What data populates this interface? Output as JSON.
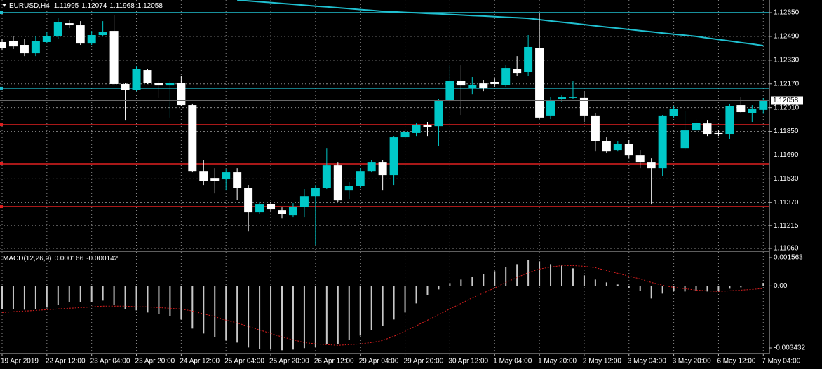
{
  "chart_data": [
    {
      "type": "candlestick",
      "title": "EURUSD,H4",
      "categories": [
        "19 Apr 2019",
        null,
        null,
        null,
        "22 Apr 12:00",
        null,
        null,
        null,
        "23 Apr 04:00",
        null,
        null,
        null,
        "23 Apr 20:00",
        null,
        null,
        null,
        "24 Apr 12:00",
        null,
        null,
        null,
        "25 Apr 04:00",
        null,
        null,
        null,
        "25 Apr 20:00",
        null,
        null,
        null,
        "26 Apr 12:00",
        null,
        null,
        null,
        "29 Apr 04:00",
        null,
        null,
        null,
        "29 Apr 20:00",
        null,
        null,
        null,
        "30 Apr 12:00",
        null,
        null,
        null,
        "1 May 04:00",
        null,
        null,
        null,
        "1 May 20:00",
        null,
        null,
        null,
        "2 May 12:00",
        null,
        null,
        null,
        "3 May 04:00",
        null,
        null,
        null,
        "3 May 20:00",
        null,
        null,
        null,
        "6 May 12:00",
        null,
        null,
        null,
        "7 May 04:00"
      ],
      "open": [
        1.12452,
        1.12461,
        1.12433,
        1.12376,
        1.12452,
        1.1249,
        1.12579,
        1.12565,
        1.12442,
        1.12499,
        1.12527,
        1.12169,
        1.12131,
        1.12263,
        1.12178,
        1.12159,
        1.12178,
        1.12027,
        1.11583,
        1.11536,
        1.11527,
        1.11574,
        1.1147,
        1.11305,
        1.11362,
        1.11319,
        1.11286,
        1.11343,
        1.11413,
        1.1147,
        1.11621,
        1.11451,
        1.11484,
        1.11583,
        1.1164,
        1.11555,
        1.1181,
        1.11839,
        1.11895,
        1.11885,
        1.12056,
        1.12192,
        1.12145,
        1.12173,
        1.12183,
        1.12164,
        1.12272,
        1.12249,
        1.12414,
        1.11957,
        1.12065,
        1.12075,
        1.12075,
        1.11957,
        1.11782,
        1.11725,
        1.11767,
        1.11687,
        1.1164,
        1.11602,
        1.11952,
        1.11734,
        1.11857,
        1.11904,
        1.11839,
        1.11829,
        1.12027,
        1.11971,
        1.11995
      ],
      "high": [
        1.12475,
        1.1249,
        1.12471,
        1.1249,
        1.12518,
        1.12617,
        1.12603,
        1.12593,
        1.12527,
        1.12593,
        1.12631,
        1.12178,
        1.12291,
        1.12272,
        1.12188,
        1.12188,
        1.12225,
        1.12037,
        1.11659,
        1.11602,
        1.11593,
        1.11602,
        1.11489,
        1.11376,
        1.11376,
        1.11338,
        1.11366,
        1.11461,
        1.11489,
        1.11734,
        1.1164,
        1.11508,
        1.11602,
        1.11659,
        1.11659,
        1.11819,
        1.11867,
        1.11904,
        1.11914,
        1.12065,
        1.12296,
        1.12296,
        1.12216,
        1.12197,
        1.12206,
        1.12296,
        1.12357,
        1.12499,
        1.1265,
        1.12084,
        1.12093,
        1.12188,
        1.12121,
        1.11971,
        1.1181,
        1.11782,
        1.11791,
        1.11725,
        1.11668,
        1.11961,
        1.12018,
        1.1199,
        1.11933,
        1.11923,
        1.11857,
        1.12037,
        1.12084,
        1.12027,
        1.12074
      ],
      "low": [
        1.12395,
        1.12405,
        1.12357,
        1.12357,
        1.12442,
        1.12471,
        1.12546,
        1.12433,
        1.12433,
        1.1249,
        1.12159,
        1.11923,
        1.12121,
        1.12169,
        1.12075,
        1.11943,
        1.12018,
        1.11574,
        1.11489,
        1.11432,
        1.11451,
        1.1139,
        1.11177,
        1.11295,
        1.11305,
        1.11262,
        1.11272,
        1.11272,
        1.11083,
        1.11461,
        1.11376,
        1.11395,
        1.1147,
        1.11574,
        1.11451,
        1.11489,
        1.11801,
        1.11819,
        1.11819,
        1.11753,
        1.12046,
        1.11961,
        1.12102,
        1.12121,
        1.1215,
        1.1215,
        1.12225,
        1.12225,
        1.11933,
        1.11933,
        1.12046,
        1.12065,
        1.11914,
        1.11715,
        1.11706,
        1.11715,
        1.11668,
        1.11602,
        1.11357,
        1.11546,
        1.11943,
        1.11725,
        1.11848,
        1.11819,
        1.11819,
        1.11801,
        1.11971,
        1.11914,
        1.11968
      ],
      "close": [
        1.12414,
        1.12423,
        1.12376,
        1.12461,
        1.1249,
        1.12584,
        1.12565,
        1.12442,
        1.12499,
        1.12518,
        1.12169,
        1.12131,
        1.12272,
        1.12178,
        1.12159,
        1.12178,
        1.12027,
        1.11583,
        1.11517,
        1.11517,
        1.11574,
        1.1147,
        1.11305,
        1.11357,
        1.11324,
        1.11295,
        1.11343,
        1.11413,
        1.1147,
        1.11621,
        1.11385,
        1.11484,
        1.11583,
        1.1164,
        1.11555,
        1.1181,
        1.11848,
        1.11895,
        1.11881,
        1.12056,
        1.12192,
        1.12159,
        1.12164,
        1.1214,
        1.12169,
        1.12277,
        1.12244,
        1.12419,
        1.11943,
        1.1206,
        1.12079,
        1.12084,
        1.11957,
        1.11782,
        1.11715,
        1.11767,
        1.11687,
        1.1164,
        1.11602,
        1.11957,
        1.11999,
        1.11857,
        1.11909,
        1.11829,
        1.11829,
        1.12022,
        1.1198,
        1.12004,
        1.12058
      ],
      "up_color": "#00c8c8",
      "down_color": "#ffffff",
      "moving_average": {
        "color": "#20c0d0",
        "values": [
          null,
          null,
          null,
          null,
          null,
          null,
          null,
          null,
          null,
          null,
          null,
          null,
          null,
          null,
          null,
          null,
          null,
          null,
          null,
          null,
          null,
          1.12735,
          1.12729,
          1.12723,
          1.12718,
          1.12712,
          1.12706,
          1.127,
          1.12694,
          1.12689,
          1.12683,
          1.12677,
          1.12671,
          1.12665,
          1.12659,
          1.12656,
          1.12652,
          1.12649,
          1.12645,
          1.12642,
          1.12638,
          1.12634,
          1.1263,
          1.12627,
          1.12623,
          1.12619,
          1.12616,
          1.12612,
          1.12603,
          1.12594,
          1.12586,
          1.12578,
          1.1257,
          1.12561,
          1.12553,
          1.12545,
          1.12537,
          1.12529,
          1.12521,
          1.12513,
          1.12505,
          1.12498,
          1.1249,
          1.12479,
          1.12469,
          1.12459,
          1.12448,
          1.12439,
          1.12428
        ]
      },
      "levels": [
        {
          "value": 1.1265,
          "color": "#20c0d0"
        },
        {
          "value": 1.12141,
          "color": "#20c0d0"
        },
        {
          "value": 1.11895,
          "color": "#e02020"
        },
        {
          "value": 1.11631,
          "color": "#e02020"
        },
        {
          "value": 1.11343,
          "color": "#e02020"
        }
      ],
      "ylim": [
        1.11046,
        1.12735
      ],
      "yticks": [
        {
          "value": 1.1265,
          "label": "1.12650"
        },
        {
          "value": 1.1249,
          "label": "1.12490"
        },
        {
          "value": 1.1233,
          "label": "1.12330"
        },
        {
          "value": 1.1217,
          "label": "1.12170"
        },
        {
          "value": 1.1201,
          "label": "1.12010"
        },
        {
          "value": 1.1185,
          "label": "1.11850"
        },
        {
          "value": 1.1169,
          "label": "1.11690"
        },
        {
          "value": 1.1153,
          "label": "1.11530"
        },
        {
          "value": 1.1137,
          "label": "1.11370"
        },
        1.11215,
        {
          "value": 1.1106,
          "label": "1.11060"
        }
      ],
      "grid": true
    },
    {
      "type": "macd",
      "title": "MACD(12,26,9)",
      "series": [
        {
          "color": "#c8c8c8",
          "values": [
            -0.001277,
            -0.001277,
            -0.001316,
            -0.001277,
            -0.0012,
            -0.001045,
            -0.00089,
            -0.00089,
            -0.00089,
            -0.000813,
            -0.001045,
            -0.001277,
            -0.001355,
            -0.001471,
            -0.001548,
            -0.001664,
            -0.001858,
            -0.002361,
            -0.002632,
            -0.002825,
            -0.003019,
            -0.003135,
            -0.003406,
            -0.003483,
            -0.003522,
            -0.00356,
            -0.003522,
            -0.003444,
            -0.003367,
            -0.003212,
            -0.003212,
            -0.00298,
            -0.002748,
            -0.002438,
            -0.002206,
            -0.001858,
            -0.001471,
            -0.000968,
            -0.000503,
            -0.000194,
            0.000155,
            0.000348,
            0.000503,
            0.000658,
            0.000813,
            0.001045,
            0.0012,
            0.001432,
            0.001355,
            0.0012,
            0.001122,
            0.000968,
            0.000581,
            0.000348,
            0.000194,
            7.7e-05,
            -0.000116,
            -0.000271,
            -0.000697,
            -0.000426,
            -0.000271,
            -0.00031,
            -0.000271,
            -0.00031,
            -0.000271,
            -0.000155,
            -7.7e-05,
            0,
            0.000166
          ]
        },
        {
          "color": "#e02020",
          "values": [
            -0.001471,
            -0.001432,
            -0.001393,
            -0.001355,
            -0.001316,
            -0.001277,
            -0.001238,
            -0.0012,
            -0.001161,
            -0.001122,
            -0.001122,
            -0.001122,
            -0.001161,
            -0.001161,
            -0.0012,
            -0.001238,
            -0.001277,
            -0.001393,
            -0.001548,
            -0.001703,
            -0.001896,
            -0.002051,
            -0.002245,
            -0.002438,
            -0.002632,
            -0.002825,
            -0.00298,
            -0.003135,
            -0.003212,
            -0.003251,
            -0.00329,
            -0.003251,
            -0.003212,
            -0.003135,
            -0.003019,
            -0.002786,
            -0.002516,
            -0.002206,
            -0.001896,
            -0.001587,
            -0.001277,
            -0.000968,
            -0.000658,
            -0.000387,
            -0.000116,
            0.000194,
            0.000464,
            0.000735,
            0.000929,
            0.001045,
            0.001122,
            0.001122,
            0.001084,
            0.001006,
            0.000851,
            0.000697,
            0.000542,
            0.000387,
            0.000194,
            3.9e-05,
            -7.7e-05,
            -0.000155,
            -0.000232,
            -0.000271,
            -0.00031,
            -0.000271,
            -0.000232,
            -0.000194,
            -0.000142
          ]
        }
      ],
      "ylim": [
        -0.003742,
        0.001873
      ],
      "yticks": [
        0.001563,
        {
          "value": 0,
          "label": "0.00"
        },
        -0.003432
      ]
    }
  ]
}
